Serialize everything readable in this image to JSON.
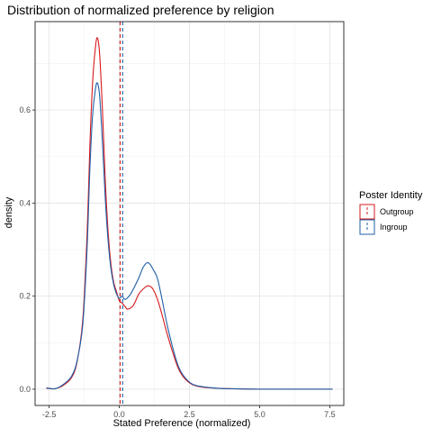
{
  "chart_data": {
    "type": "line",
    "title": "Distribution of normalized preference by religion",
    "xlabel": "Stated Preference (normalized)",
    "ylabel": "density",
    "xlim": [
      -3.0,
      8.0
    ],
    "ylim": [
      -0.035,
      0.79
    ],
    "xticks": [
      -2.5,
      0.0,
      2.5,
      5.0,
      7.5
    ],
    "xtick_labels": [
      "-2.5",
      "0.0",
      "2.5",
      "5.0",
      "7.5"
    ],
    "yticks": [
      0.0,
      0.2,
      0.4,
      0.6
    ],
    "ytick_labels": [
      "0.0",
      "0.2",
      "0.4",
      "0.6"
    ],
    "grid": true,
    "legend": {
      "title": "Poster Identity",
      "placement": "right"
    },
    "series": [
      {
        "name": "Outgroup",
        "color": "#d7191c",
        "mean_line_x": 0.03,
        "x": [
          -2.6,
          -2.3,
          -2.0,
          -1.7,
          -1.5,
          -1.3,
          -1.15,
          -1.05,
          -0.95,
          -0.85,
          -0.78,
          -0.7,
          -0.6,
          -0.5,
          -0.4,
          -0.3,
          -0.2,
          -0.1,
          0.0,
          0.1,
          0.2,
          0.3,
          0.5,
          0.7,
          0.9,
          1.0,
          1.1,
          1.2,
          1.35,
          1.5,
          1.7,
          1.9,
          2.1,
          2.3,
          2.6,
          3.0,
          3.5,
          4.0,
          5.0,
          6.0,
          7.0,
          7.6
        ],
        "values": [
          0.002,
          0.001,
          0.008,
          0.025,
          0.06,
          0.15,
          0.33,
          0.52,
          0.66,
          0.735,
          0.755,
          0.72,
          0.6,
          0.45,
          0.34,
          0.27,
          0.23,
          0.21,
          0.19,
          0.185,
          0.178,
          0.172,
          0.18,
          0.205,
          0.218,
          0.222,
          0.221,
          0.215,
          0.195,
          0.165,
          0.12,
          0.08,
          0.045,
          0.025,
          0.01,
          0.004,
          0.002,
          0.001,
          0.0,
          0.0,
          0.0,
          0.0
        ]
      },
      {
        "name": "Ingroup",
        "color": "#1f5fa8",
        "mean_line_x": 0.12,
        "x": [
          -2.6,
          -2.3,
          -2.0,
          -1.7,
          -1.5,
          -1.3,
          -1.15,
          -1.05,
          -0.95,
          -0.85,
          -0.78,
          -0.7,
          -0.6,
          -0.5,
          -0.4,
          -0.3,
          -0.2,
          -0.1,
          0.0,
          0.1,
          0.2,
          0.35,
          0.5,
          0.7,
          0.85,
          1.0,
          1.1,
          1.2,
          1.35,
          1.5,
          1.7,
          1.9,
          2.1,
          2.3,
          2.6,
          3.0,
          3.5,
          4.0,
          5.0,
          6.0,
          7.0,
          7.6
        ],
        "values": [
          0.003,
          0.001,
          0.01,
          0.028,
          0.062,
          0.14,
          0.3,
          0.47,
          0.59,
          0.645,
          0.658,
          0.63,
          0.53,
          0.41,
          0.32,
          0.26,
          0.225,
          0.205,
          0.195,
          0.2,
          0.193,
          0.2,
          0.215,
          0.24,
          0.262,
          0.272,
          0.268,
          0.258,
          0.24,
          0.2,
          0.14,
          0.09,
          0.05,
          0.028,
          0.011,
          0.005,
          0.002,
          0.001,
          0.0,
          0.0,
          0.0,
          0.0
        ]
      }
    ]
  }
}
